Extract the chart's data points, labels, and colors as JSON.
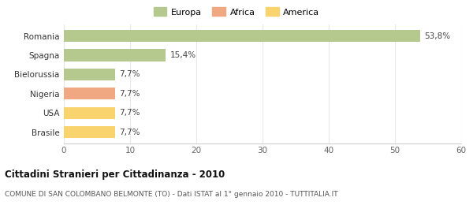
{
  "categories": [
    "Brasile",
    "USA",
    "Nigeria",
    "Bielorussia",
    "Spagna",
    "Romania"
  ],
  "values": [
    7.7,
    7.7,
    7.7,
    7.7,
    15.4,
    53.8
  ],
  "labels": [
    "7,7%",
    "7,7%",
    "7,7%",
    "7,7%",
    "15,4%",
    "53,8%"
  ],
  "colors": [
    "#f9d46e",
    "#f9d46e",
    "#f0a882",
    "#b5c98e",
    "#b5c98e",
    "#b5c98e"
  ],
  "legend": [
    {
      "label": "Europa",
      "color": "#b5c98e"
    },
    {
      "label": "Africa",
      "color": "#f0a882"
    },
    {
      "label": "America",
      "color": "#f9d46e"
    }
  ],
  "xlim": [
    0,
    60
  ],
  "xticks": [
    0,
    10,
    20,
    30,
    40,
    50,
    60
  ],
  "title": "Cittadini Stranieri per Cittadinanza - 2010",
  "subtitle": "COMUNE DI SAN COLOMBANO BELMONTE (TO) - Dati ISTAT al 1° gennaio 2010 - TUTTITALIA.IT",
  "background_color": "#ffffff",
  "grid_color": "#e8e8e8",
  "bar_height": 0.62
}
